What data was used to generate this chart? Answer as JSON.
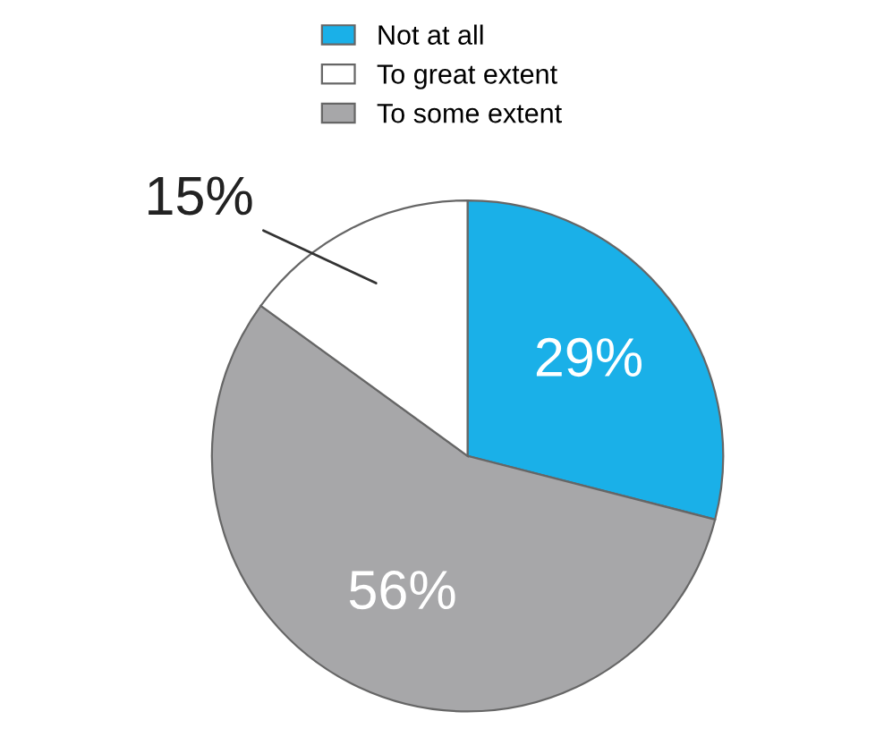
{
  "chart_data": {
    "type": "pie",
    "categories": [
      "Not at all",
      "To great extent",
      "To some extent"
    ],
    "values": [
      29,
      15,
      56
    ],
    "colors": [
      "#1ab0e8",
      "#ffffff",
      "#a7a7a9"
    ],
    "value_labels": [
      "29%",
      "15%",
      "56%"
    ],
    "legend": "top"
  }
}
